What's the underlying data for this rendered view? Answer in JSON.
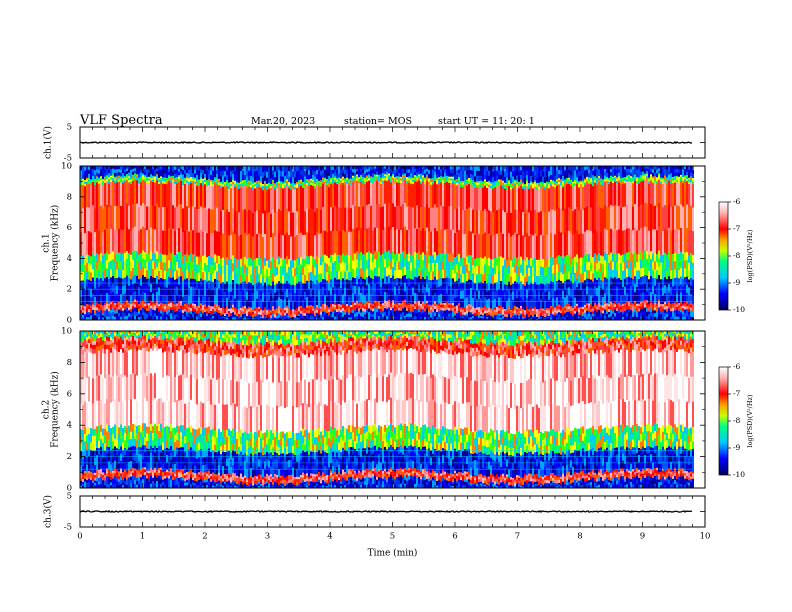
{
  "header": {
    "title": "VLF Spectra",
    "date": "Mar.20, 2023",
    "station": "station= MOS",
    "start": "start  UT =   11: 20: 1"
  },
  "colors": {
    "spectrum": [
      "#000080",
      "#0000ff",
      "#00c8ff",
      "#00ff80",
      "#c8ff00",
      "#ffa000",
      "#ff0000",
      "#ffb4b4",
      "#ffffff"
    ]
  },
  "chart_data": [
    {
      "type": "line",
      "panel": "ch.1",
      "ylabel": "ch.1(V)",
      "ylim": [
        -5,
        5
      ],
      "yticks": [
        -5,
        5
      ],
      "x": [
        0,
        9.8
      ],
      "values": [
        0,
        0
      ]
    },
    {
      "type": "heatmap",
      "panel": "ch.1 spectrogram",
      "ylabel_lines": [
        "ch.1",
        "Frequency (kHz)"
      ],
      "ylim": [
        0,
        10
      ],
      "yticks": [
        0,
        2,
        4,
        6,
        8,
        10
      ],
      "xlim": [
        0,
        9.8
      ],
      "colorbar": {
        "label": "log(PSD)(V²/Hz)",
        "range": [
          -10,
          -6
        ],
        "ticks": [
          -10,
          -9,
          -8,
          -7,
          -6
        ]
      },
      "bands_khz": [
        {
          "from": 0,
          "to": 0.5,
          "level": "blue"
        },
        {
          "from": 0.5,
          "to": 1.0,
          "level": "red"
        },
        {
          "from": 1.0,
          "to": 2.6,
          "level": "blue"
        },
        {
          "from": 2.6,
          "to": 4.2,
          "level": "green"
        },
        {
          "from": 4.2,
          "to": 8.8,
          "level": "red"
        },
        {
          "from": 8.8,
          "to": 9.2,
          "level": "green"
        },
        {
          "from": 9.2,
          "to": 10,
          "level": "blue"
        }
      ]
    },
    {
      "type": "heatmap",
      "panel": "ch.2 spectrogram",
      "ylabel_lines": [
        "ch.2",
        "Frequency (kHz)"
      ],
      "ylim": [
        0,
        10
      ],
      "yticks": [
        0,
        2,
        4,
        6,
        8,
        10
      ],
      "xlim": [
        0,
        9.8
      ],
      "colorbar": {
        "label": "log(PSD)(V²/Hz)",
        "range": [
          -10,
          -6
        ],
        "ticks": [
          -10,
          -9,
          -8,
          -7,
          -6
        ]
      },
      "bands_khz": [
        {
          "from": 0,
          "to": 0.5,
          "level": "blue"
        },
        {
          "from": 0.5,
          "to": 1.0,
          "level": "red"
        },
        {
          "from": 1.0,
          "to": 2.4,
          "level": "blue"
        },
        {
          "from": 2.4,
          "to": 3.8,
          "level": "green"
        },
        {
          "from": 3.8,
          "to": 8.6,
          "level": "white-red"
        },
        {
          "from": 8.6,
          "to": 9.4,
          "level": "red"
        },
        {
          "from": 9.4,
          "to": 10,
          "level": "green"
        }
      ]
    },
    {
      "type": "line",
      "panel": "ch.3",
      "ylabel": "ch.3(V)",
      "ylim": [
        -5,
        5
      ],
      "yticks": [
        -5,
        5
      ],
      "x": [
        0,
        9.8
      ],
      "values": [
        0,
        0
      ]
    }
  ],
  "xaxis": {
    "label": "Time  (min)",
    "ticks": [
      "0",
      "1",
      "2",
      "3",
      "4",
      "5",
      "6",
      "7",
      "8",
      "9",
      "10"
    ],
    "range": [
      0,
      10
    ]
  }
}
